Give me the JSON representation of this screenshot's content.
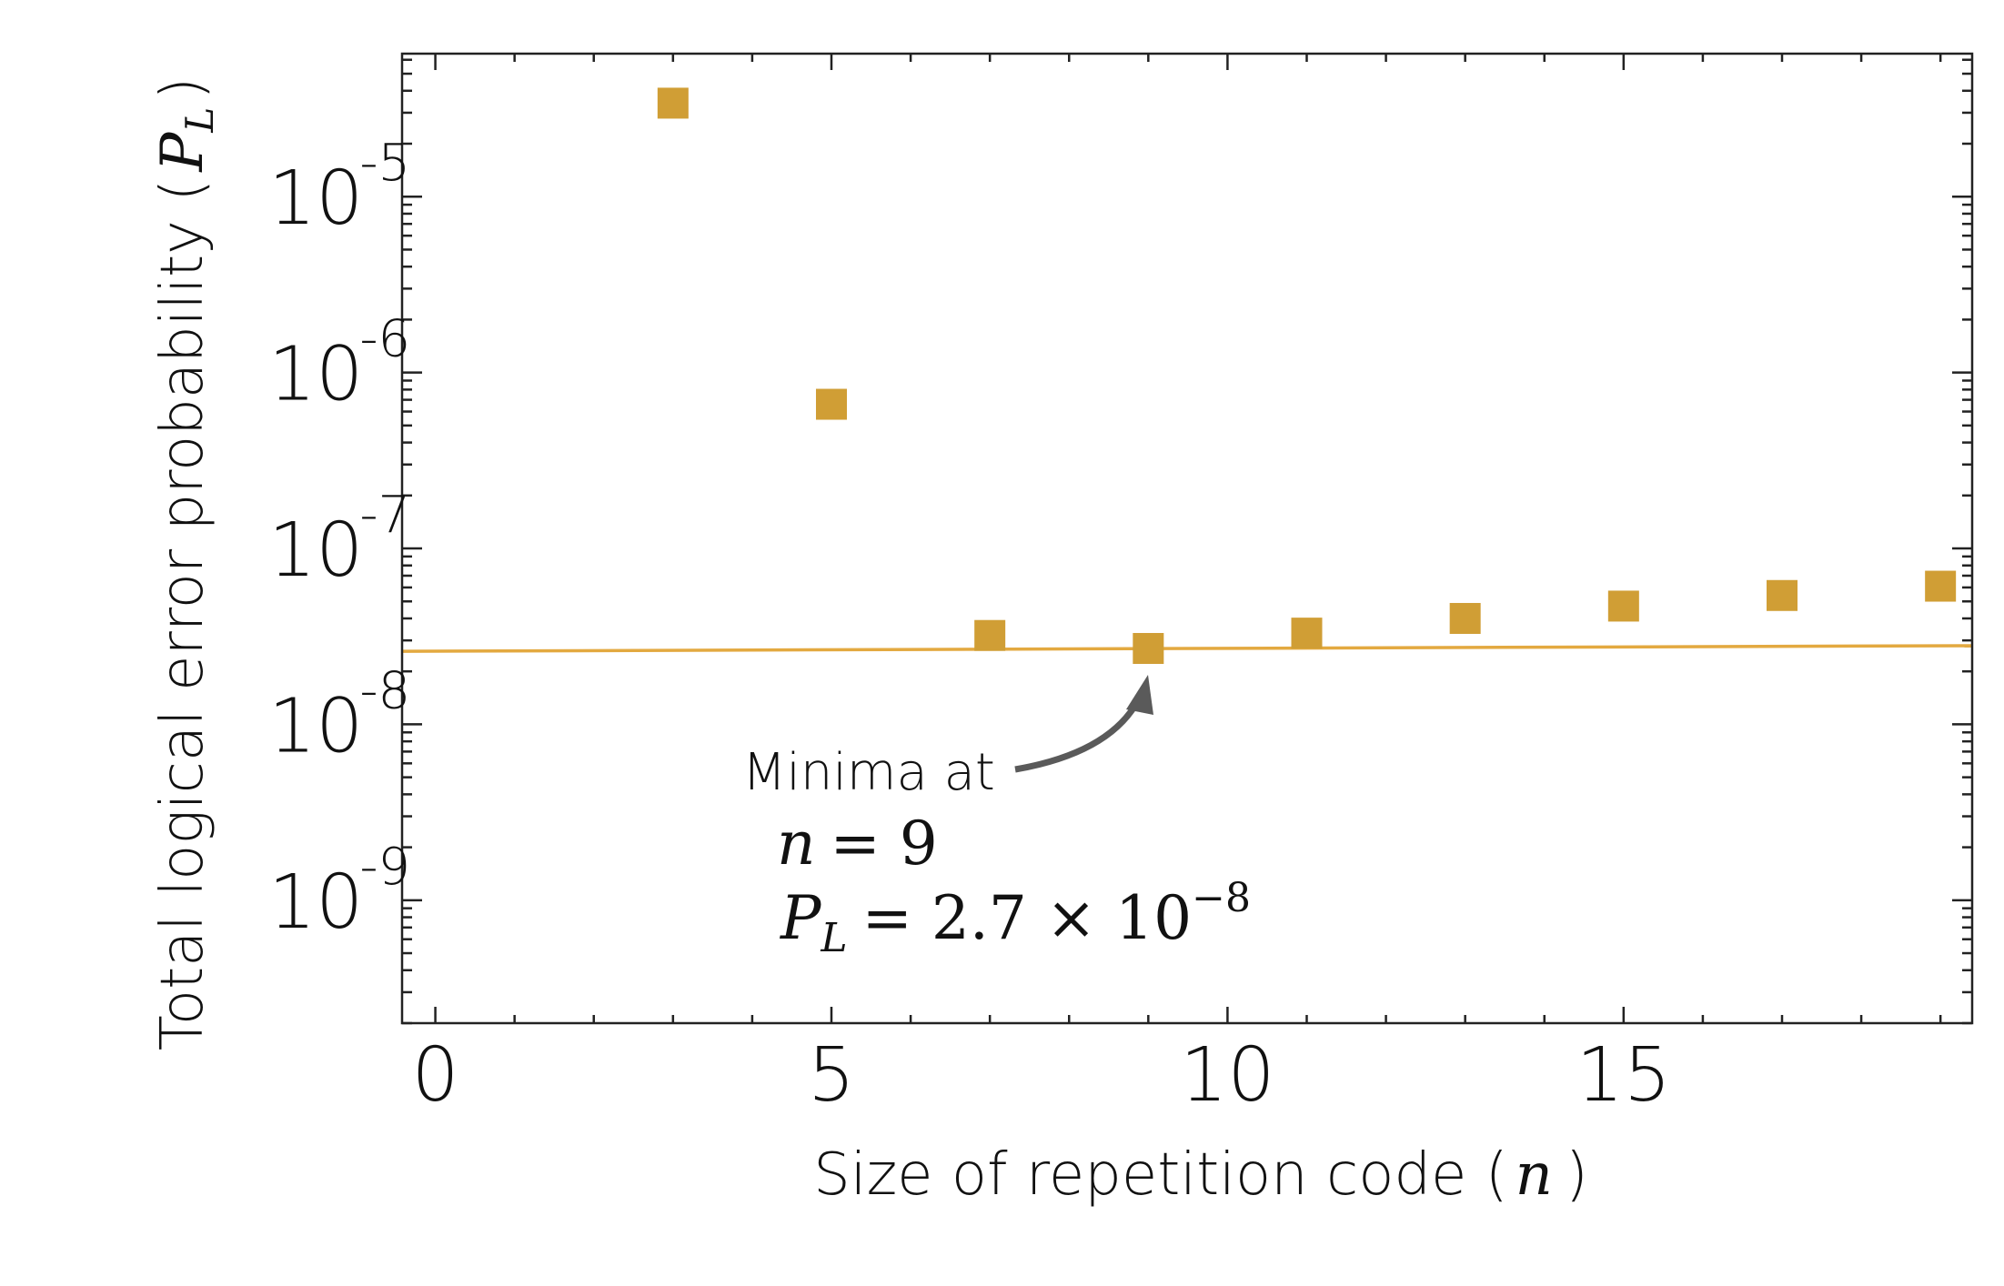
{
  "chart_data": {
    "type": "scatter",
    "title": "",
    "xlabel": "Size of repetition code (",
    "xlabel_var": "n",
    "xlabel_close": ")",
    "ylabel": "Total logical error probability (",
    "ylabel_var": "P",
    "ylabel_sub": "L",
    "ylabel_close": ")",
    "x_scale": "linear",
    "y_scale": "log",
    "xlim": [
      -0.42,
      19.4
    ],
    "ylim": [
      2e-10,
      6.5e-05
    ],
    "x_ticks": [
      0,
      5,
      10,
      15
    ],
    "x_tick_labels": [
      "0",
      "5",
      "10",
      "15"
    ],
    "y_ticks": [
      1e-05,
      1e-06,
      1e-07,
      1e-08,
      1e-09
    ],
    "y_tick_labels": [
      {
        "base": "10",
        "exp": "-5"
      },
      {
        "base": "10",
        "exp": "-6"
      },
      {
        "base": "10",
        "exp": "-7"
      },
      {
        "base": "10",
        "exp": "-8"
      },
      {
        "base": "10",
        "exp": "-9"
      }
    ],
    "grid": false,
    "series": [
      {
        "marker": "square",
        "color": "#D09E35",
        "x": [
          3,
          5,
          7,
          9,
          11,
          13,
          15,
          17,
          19
        ],
        "y": [
          3.4e-05,
          6.6e-07,
          3.2e-08,
          2.7e-08,
          3.3e-08,
          4e-08,
          4.7e-08,
          5.4e-08,
          6.1e-08
        ]
      }
    ],
    "reference_line": {
      "color": "#E3A940",
      "x": [
        -0.42,
        19.4
      ],
      "y": [
        2.6e-08,
        2.8e-08
      ]
    },
    "annotation": {
      "text": "Minima at",
      "n_line": {
        "var": "n",
        "eq": "= 9"
      },
      "pl_line": {
        "var": "P",
        "sub": "L",
        "eq": "= 2.7 × 10",
        "exp": "−8"
      },
      "arrow_color": "#5a5a5a",
      "points_to": {
        "x": 9,
        "y": 2.7e-08
      }
    }
  }
}
